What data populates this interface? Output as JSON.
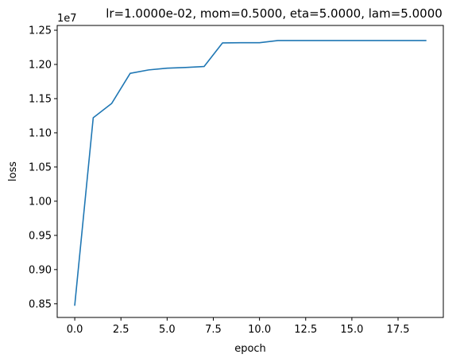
{
  "chart_data": {
    "type": "line",
    "title": "lr=1.0000e-02, mom=0.5000, eta=5.0000, lam=5.0000",
    "xlabel": "epoch",
    "ylabel": "loss",
    "y_offset_label": "1e7",
    "xlim": [
      -0.95,
      19.95
    ],
    "ylim": [
      8300000.0,
      12570000.0
    ],
    "x_ticks": [
      0.0,
      2.5,
      5.0,
      7.5,
      10.0,
      12.5,
      15.0,
      17.5
    ],
    "x_tick_labels": [
      "0.0",
      "2.5",
      "5.0",
      "7.5",
      "10.0",
      "12.5",
      "15.0",
      "17.5"
    ],
    "y_ticks": [
      8500000.0,
      9000000.0,
      9500000.0,
      10000000.0,
      10500000.0,
      11000000.0,
      11500000.0,
      12000000.0,
      12500000.0
    ],
    "y_tick_labels": [
      "0.85",
      "0.90",
      "0.95",
      "1.00",
      "1.05",
      "1.10",
      "1.15",
      "1.20",
      "1.25"
    ],
    "grid": false,
    "legend": "none",
    "series": [
      {
        "color": "#1f77b4",
        "x": [
          0,
          1,
          2,
          3,
          4,
          5,
          6,
          7,
          8,
          9,
          10,
          11,
          12,
          13,
          14,
          15,
          16,
          17,
          18,
          19
        ],
        "values": [
          8480000,
          11220000,
          11430000,
          11870000,
          11920000,
          11945000,
          11955000,
          11970000,
          12315000,
          12318000,
          12318000,
          12350000,
          12350000,
          12350000,
          12350000,
          12350000,
          12350000,
          12350000,
          12350000,
          12350000
        ]
      }
    ]
  }
}
